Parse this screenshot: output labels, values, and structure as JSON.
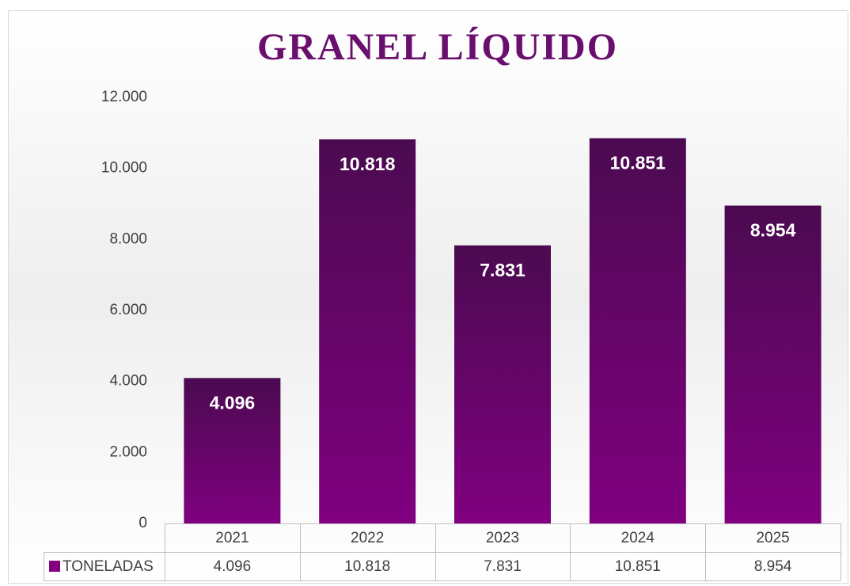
{
  "chart_data": {
    "type": "bar",
    "title": "GRANEL LÍQUIDO",
    "categories": [
      "2021",
      "2022",
      "2023",
      "2024",
      "2025"
    ],
    "series": [
      {
        "name": "TONELADAS",
        "color": "#800080",
        "values": [
          4096,
          10818,
          7831,
          10851,
          8954
        ],
        "value_labels": [
          "4.096",
          "10.818",
          "7.831",
          "10.851",
          "8.954"
        ]
      }
    ],
    "ylim": [
      0,
      12000
    ],
    "yticks": [
      0,
      {
        "value": 2000,
        "label": "2.000"
      },
      {
        "value": 4000,
        "label": "4.000"
      },
      {
        "value": 6000,
        "label": "6.000"
      },
      {
        "value": 8000,
        "label": "8.000"
      },
      {
        "value": 10000,
        "label": "10.000"
      },
      {
        "value": 12000,
        "label": "12.000"
      }
    ],
    "grid": false,
    "data_table": true
  }
}
